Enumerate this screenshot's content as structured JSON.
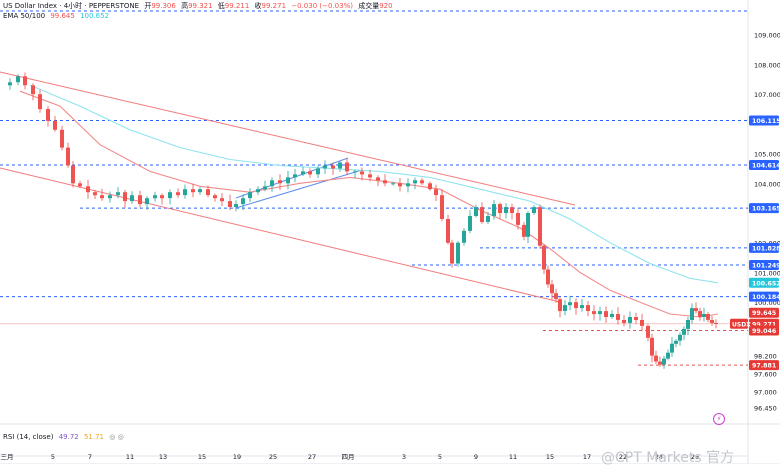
{
  "header": {
    "symbol": "US Dollar Index · 4小时 · PEPPERSTONE",
    "open_label": "开",
    "open": "99.306",
    "high_label": "高",
    "high": "99.321",
    "low_label": "低",
    "low": "99.211",
    "close_label": "收",
    "close": "99.271",
    "change": "−0.030 (−0.03%)",
    "volume_label": "成交量",
    "volume": "920",
    "ema_label": "EMA 50/100",
    "ema50": "99.645",
    "ema100": "100.652",
    "rsi_label": "RSI (14, close)",
    "rsi": "49.72",
    "rsi_ma": "51.71"
  },
  "watermark": "@CPT Markets 官方",
  "colors": {
    "up": "#26a69a",
    "down": "#ef5350",
    "ema50": "#f28b8b",
    "ema100": "#8fe3ef",
    "channel": "#f07a7a",
    "wedge": "#5b8def",
    "hline": "#2962ff",
    "support": "#e05555"
  },
  "chart_data": {
    "type": "candlestick",
    "title": "US Dollar Index · 4小时 · PEPPERSTONE",
    "y_ticks": [
      "109.000",
      "108.000",
      "107.000",
      "105.000",
      "104.000",
      "102.000",
      "101.000",
      "100.000",
      "98.200",
      "97.600",
      "97.000",
      "96.450"
    ],
    "ylim": [
      96.0,
      109.9
    ],
    "x_ticks": [
      "三月",
      "5",
      "7",
      "11",
      "13",
      "15",
      "19",
      "25",
      "27",
      "四月",
      "3",
      "5",
      "9",
      "11",
      "15",
      "17",
      "22",
      "24",
      "26"
    ],
    "price_labels": [
      {
        "value": 106.115,
        "text": "106.115",
        "style": "blue"
      },
      {
        "value": 104.614,
        "text": "104.614",
        "style": "blue"
      },
      {
        "value": 103.165,
        "text": "103.165",
        "style": "blue"
      },
      {
        "value": 101.828,
        "text": "101.828",
        "style": "blue"
      },
      {
        "value": 101.249,
        "text": "101.249",
        "style": "blue"
      },
      {
        "value": 100.652,
        "text": "100.652",
        "style": "cyan"
      },
      {
        "value": 100.184,
        "text": "100.184",
        "style": "blue"
      },
      {
        "value": 99.645,
        "text": "99.645",
        "style": "red"
      },
      {
        "value": 99.271,
        "text": "99.271",
        "style": "red"
      },
      {
        "value": 99.046,
        "text": "99.046",
        "style": "red"
      },
      {
        "value": 97.881,
        "text": "97.881",
        "style": "red"
      }
    ],
    "symbol_tag": "USDX",
    "horizontal_levels": [
      {
        "value": 109.8,
        "x_from": 0,
        "style": "blue"
      },
      {
        "value": 106.115,
        "x_from": 0,
        "style": "blue"
      },
      {
        "value": 104.614,
        "x_from": 0,
        "style": "blue"
      },
      {
        "value": 103.165,
        "x_from": 80,
        "style": "blue"
      },
      {
        "value": 101.828,
        "x_from": 480,
        "style": "blue"
      },
      {
        "value": 101.249,
        "x_from": 412,
        "style": "blue"
      },
      {
        "value": 100.184,
        "x_from": 0,
        "style": "blue"
      },
      {
        "value": 99.046,
        "x_from": 543,
        "style": "red"
      },
      {
        "value": 97.881,
        "x_from": 638,
        "style": "red"
      }
    ],
    "close_path": [
      [
        0,
        107.3
      ],
      [
        10,
        107.4
      ],
      [
        18,
        107.6
      ],
      [
        25,
        107.3
      ],
      [
        33,
        107.0
      ],
      [
        40,
        106.5
      ],
      [
        48,
        106.1
      ],
      [
        55,
        105.8
      ],
      [
        62,
        105.2
      ],
      [
        68,
        104.6
      ],
      [
        73,
        104.0
      ],
      [
        80,
        103.9
      ],
      [
        88,
        103.7
      ],
      [
        95,
        103.6
      ],
      [
        102,
        103.5
      ],
      [
        110,
        103.6
      ],
      [
        118,
        103.7
      ],
      [
        125,
        103.4
      ],
      [
        132,
        103.6
      ],
      [
        140,
        103.3
      ],
      [
        147,
        103.5
      ],
      [
        155,
        103.6
      ],
      [
        162,
        103.5
      ],
      [
        170,
        103.7
      ],
      [
        178,
        103.6
      ],
      [
        185,
        103.8
      ],
      [
        193,
        103.7
      ],
      [
        200,
        103.8
      ],
      [
        208,
        103.6
      ],
      [
        215,
        103.5
      ],
      [
        222,
        103.4
      ],
      [
        230,
        103.2
      ],
      [
        236,
        103.3
      ],
      [
        243,
        103.5
      ],
      [
        250,
        103.7
      ],
      [
        258,
        103.8
      ],
      [
        265,
        103.9
      ],
      [
        272,
        104.1
      ],
      [
        280,
        104.0
      ],
      [
        288,
        104.2
      ],
      [
        295,
        104.3
      ],
      [
        303,
        104.4
      ],
      [
        310,
        104.3
      ],
      [
        318,
        104.5
      ],
      [
        325,
        104.6
      ],
      [
        333,
        104.5
      ],
      [
        340,
        104.7
      ],
      [
        347,
        104.4
      ],
      [
        355,
        104.4
      ],
      [
        362,
        104.3
      ],
      [
        370,
        104.2
      ],
      [
        378,
        104.1
      ],
      [
        385,
        104.0
      ],
      [
        393,
        104.0
      ],
      [
        400,
        103.9
      ],
      [
        408,
        104.0
      ],
      [
        415,
        104.1
      ],
      [
        422,
        104.0
      ],
      [
        430,
        103.8
      ],
      [
        436,
        103.6
      ],
      [
        442,
        102.8
      ],
      [
        448,
        102.0
      ],
      [
        452,
        101.3
      ],
      [
        458,
        102.0
      ],
      [
        464,
        102.4
      ],
      [
        470,
        102.9
      ],
      [
        476,
        103.2
      ],
      [
        482,
        102.7
      ],
      [
        488,
        102.9
      ],
      [
        494,
        103.3
      ],
      [
        500,
        103.0
      ],
      [
        506,
        103.2
      ],
      [
        512,
        103.0
      ],
      [
        518,
        102.6
      ],
      [
        524,
        102.2
      ],
      [
        528,
        103.0
      ],
      [
        534,
        103.2
      ],
      [
        540,
        101.9
      ],
      [
        544,
        101.1
      ],
      [
        548,
        100.6
      ],
      [
        552,
        100.3
      ],
      [
        556,
        100.1
      ],
      [
        560,
        99.7
      ],
      [
        565,
        99.9
      ],
      [
        570,
        100.0
      ],
      [
        576,
        99.8
      ],
      [
        582,
        99.9
      ],
      [
        588,
        99.7
      ],
      [
        594,
        99.6
      ],
      [
        600,
        99.7
      ],
      [
        606,
        99.5
      ],
      [
        612,
        99.6
      ],
      [
        618,
        99.4
      ],
      [
        624,
        99.3
      ],
      [
        630,
        99.5
      ],
      [
        636,
        99.4
      ],
      [
        642,
        99.2
      ],
      [
        648,
        98.8
      ],
      [
        652,
        98.2
      ],
      [
        656,
        98.0
      ],
      [
        660,
        97.9
      ],
      [
        664,
        98.1
      ],
      [
        668,
        98.3
      ],
      [
        672,
        98.6
      ],
      [
        676,
        98.7
      ],
      [
        680,
        98.9
      ],
      [
        684,
        99.1
      ],
      [
        688,
        99.4
      ],
      [
        692,
        99.8
      ],
      [
        696,
        99.7
      ],
      [
        700,
        99.5
      ],
      [
        704,
        99.6
      ],
      [
        708,
        99.4
      ],
      [
        712,
        99.3
      ],
      [
        716,
        99.27
      ]
    ],
    "ema50_path": [
      [
        20,
        107.1
      ],
      [
        60,
        106.6
      ],
      [
        100,
        105.3
      ],
      [
        150,
        104.4
      ],
      [
        200,
        103.9
      ],
      [
        250,
        103.7
      ],
      [
        300,
        104.0
      ],
      [
        350,
        104.2
      ],
      [
        400,
        104.0
      ],
      [
        440,
        103.8
      ],
      [
        480,
        103.1
      ],
      [
        520,
        102.5
      ],
      [
        550,
        101.8
      ],
      [
        580,
        101.0
      ],
      [
        610,
        100.4
      ],
      [
        640,
        100.0
      ],
      [
        670,
        99.6
      ],
      [
        700,
        99.5
      ],
      [
        718,
        99.6
      ]
    ],
    "ema100_path": [
      [
        30,
        107.3
      ],
      [
        80,
        106.6
      ],
      [
        130,
        105.8
      ],
      [
        180,
        105.2
      ],
      [
        230,
        104.8
      ],
      [
        280,
        104.6
      ],
      [
        330,
        104.5
      ],
      [
        380,
        104.4
      ],
      [
        430,
        104.2
      ],
      [
        480,
        103.8
      ],
      [
        530,
        103.4
      ],
      [
        570,
        102.8
      ],
      [
        610,
        102.0
      ],
      [
        650,
        101.3
      ],
      [
        690,
        100.8
      ],
      [
        718,
        100.65
      ]
    ],
    "ema_legend": {
      "ema50": "99.645",
      "ema100": "100.652"
    }
  }
}
